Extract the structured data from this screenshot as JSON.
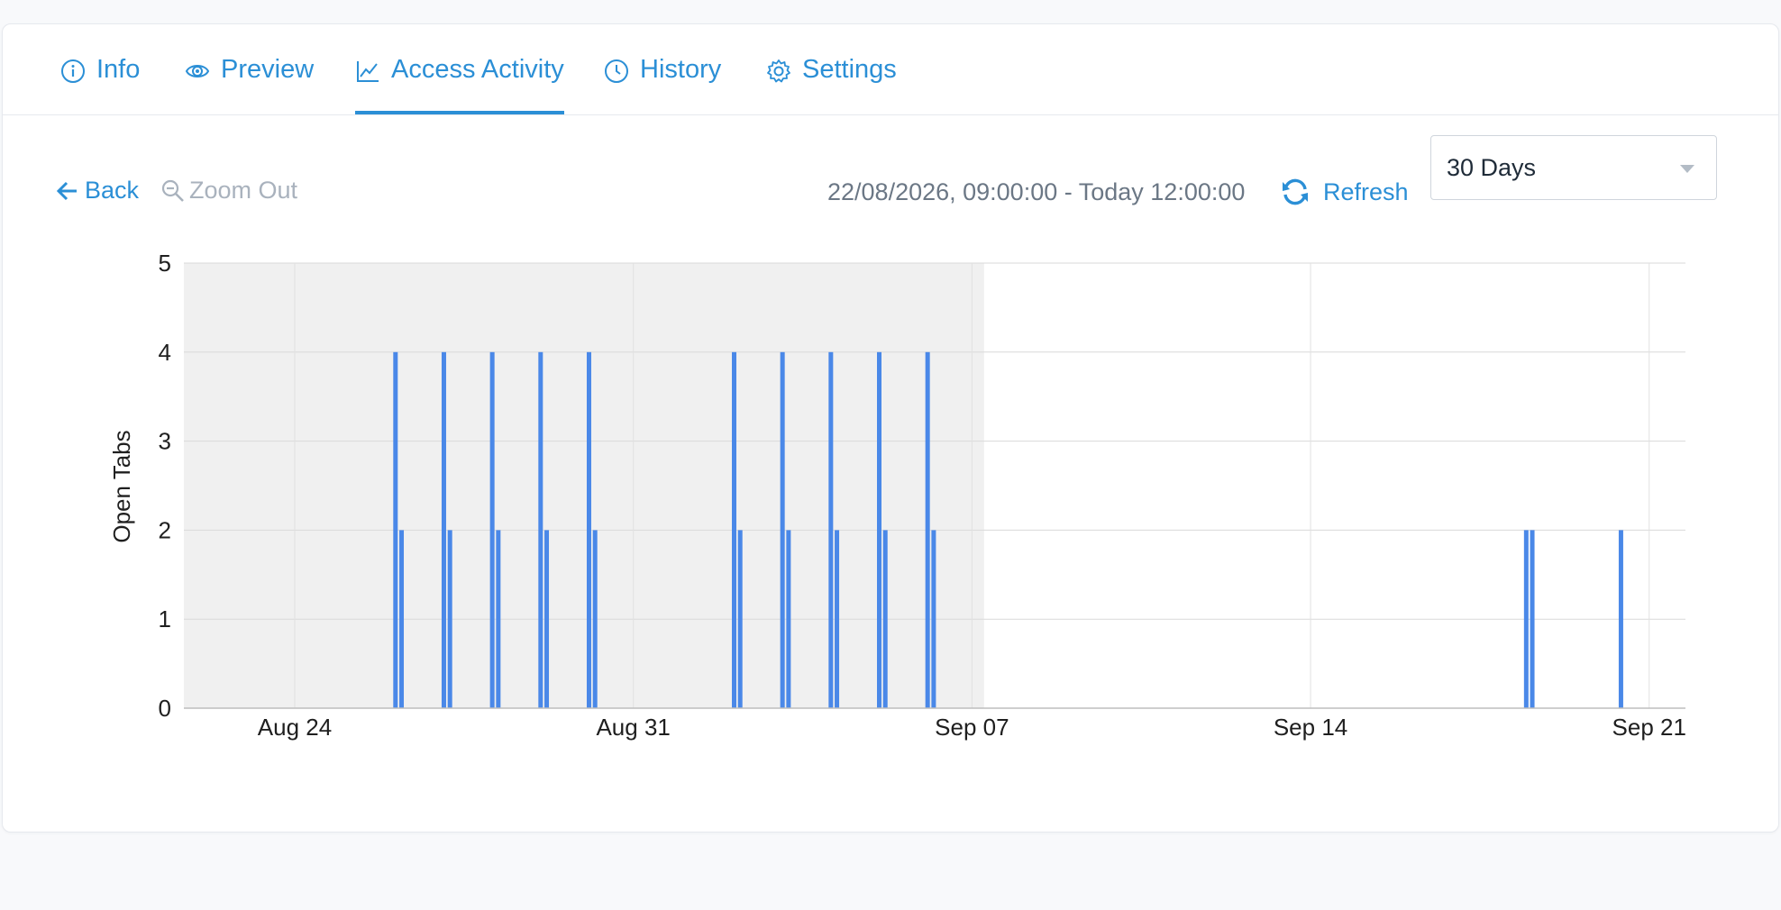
{
  "tabs": [
    {
      "label": "Info",
      "icon": "info-icon",
      "active": false
    },
    {
      "label": "Preview",
      "icon": "eye-icon",
      "active": false
    },
    {
      "label": "Access Activity",
      "icon": "chart-line-icon",
      "active": true
    },
    {
      "label": "History",
      "icon": "clock-icon",
      "active": false
    },
    {
      "label": "Settings",
      "icon": "gear-icon",
      "active": false
    }
  ],
  "toolbar": {
    "back_label": "Back",
    "zoom_out_label": "Zoom Out",
    "range_text": "22/08/2026, 09:00:00 - Today 12:00:00",
    "refresh_label": "Refresh",
    "period_value": "30 Days"
  },
  "colors": {
    "accent": "#2b8fd6",
    "bar": "#4a88e8",
    "shaded_region": "#f0f0f0",
    "muted": "#a9b2bd"
  },
  "chart_data": {
    "type": "bar",
    "ylabel": "Open Tabs",
    "xlabel": "",
    "ylim": [
      0,
      5
    ],
    "yticks": [
      0,
      1,
      2,
      3,
      4,
      5
    ],
    "xlim": [
      "2026-08-21T17:00",
      "2026-09-21T18:00"
    ],
    "xticks": [
      {
        "label": "Aug 24",
        "date": "2026-08-24"
      },
      {
        "label": "Aug 31",
        "date": "2026-08-31"
      },
      {
        "label": "Sep 07",
        "date": "2026-09-07"
      },
      {
        "label": "Sep 14",
        "date": "2026-09-14"
      },
      {
        "label": "Sep 21",
        "date": "2026-09-21"
      }
    ],
    "shaded_range": [
      "2026-08-21T17:00",
      "2026-09-07T06:00"
    ],
    "grid": true,
    "points": [
      {
        "x": "2026-08-26T02:00",
        "y": 4
      },
      {
        "x": "2026-08-26T05:00",
        "y": 2
      },
      {
        "x": "2026-08-27T02:00",
        "y": 4
      },
      {
        "x": "2026-08-27T05:00",
        "y": 2
      },
      {
        "x": "2026-08-28T02:00",
        "y": 4
      },
      {
        "x": "2026-08-28T05:00",
        "y": 2
      },
      {
        "x": "2026-08-29T02:00",
        "y": 4
      },
      {
        "x": "2026-08-29T05:00",
        "y": 2
      },
      {
        "x": "2026-08-30T02:00",
        "y": 4
      },
      {
        "x": "2026-08-30T05:00",
        "y": 2
      },
      {
        "x": "2026-09-02T02:00",
        "y": 4
      },
      {
        "x": "2026-09-02T05:00",
        "y": 2
      },
      {
        "x": "2026-09-03T02:00",
        "y": 4
      },
      {
        "x": "2026-09-03T05:00",
        "y": 2
      },
      {
        "x": "2026-09-04T02:00",
        "y": 4
      },
      {
        "x": "2026-09-04T05:00",
        "y": 2
      },
      {
        "x": "2026-09-05T02:00",
        "y": 4
      },
      {
        "x": "2026-09-05T05:00",
        "y": 2
      },
      {
        "x": "2026-09-06T02:00",
        "y": 4
      },
      {
        "x": "2026-09-06T05:00",
        "y": 2
      },
      {
        "x": "2026-09-18T11:00",
        "y": 2
      },
      {
        "x": "2026-09-18T14:00",
        "y": 2
      },
      {
        "x": "2026-09-20T10:00",
        "y": 2
      }
    ]
  }
}
